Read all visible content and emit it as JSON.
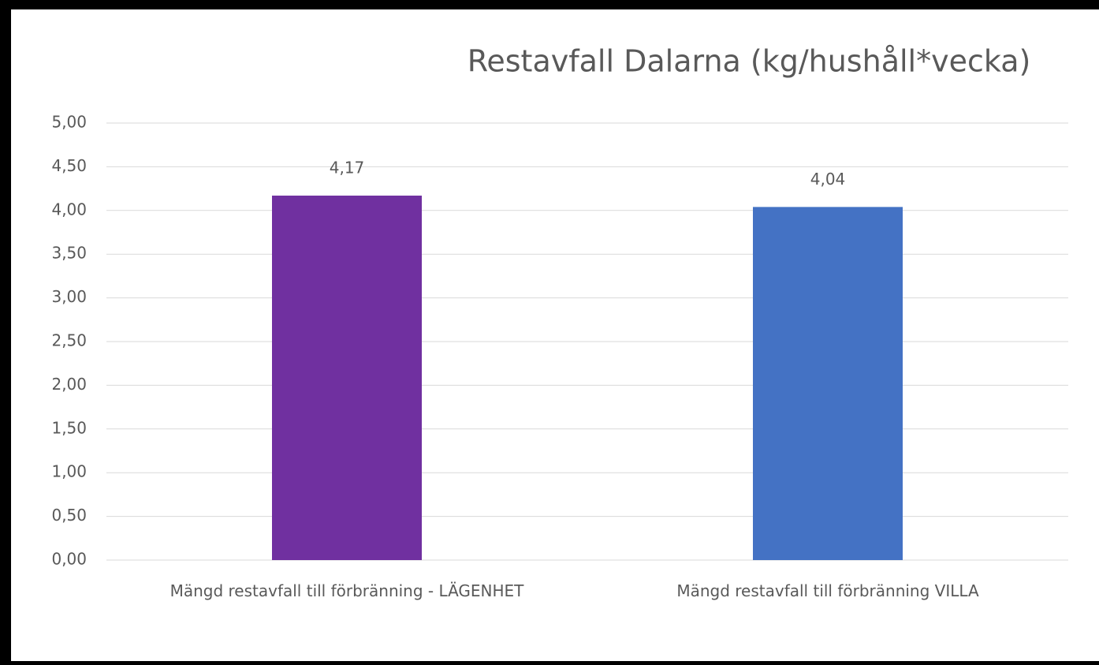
{
  "chart_data": {
    "type": "bar",
    "title": "Restavfall Dalarna (kg/hushåll*vecka)",
    "categories": [
      "Mängd restavfall till förbränning - LÄGENHET",
      "Mängd restavfall till förbränning VILLA"
    ],
    "values": [
      4.17,
      4.04
    ],
    "value_labels": [
      "4,17",
      "4,04"
    ],
    "colors": [
      "#7030a0",
      "#4472c4"
    ],
    "ylim": [
      0,
      5
    ],
    "yticks": [
      {
        "value": 0,
        "label": "0,00"
      },
      {
        "value": 0.5,
        "label": "0,50"
      },
      {
        "value": 1,
        "label": "1,00"
      },
      {
        "value": 1.5,
        "label": "1,50"
      },
      {
        "value": 2,
        "label": "2,00"
      },
      {
        "value": 2.5,
        "label": "2,50"
      },
      {
        "value": 3,
        "label": "3,00"
      },
      {
        "value": 3.5,
        "label": "3,50"
      },
      {
        "value": 4,
        "label": "4,00"
      },
      {
        "value": 4.5,
        "label": "4,50"
      },
      {
        "value": 5,
        "label": "5,00"
      }
    ],
    "grid": true
  }
}
